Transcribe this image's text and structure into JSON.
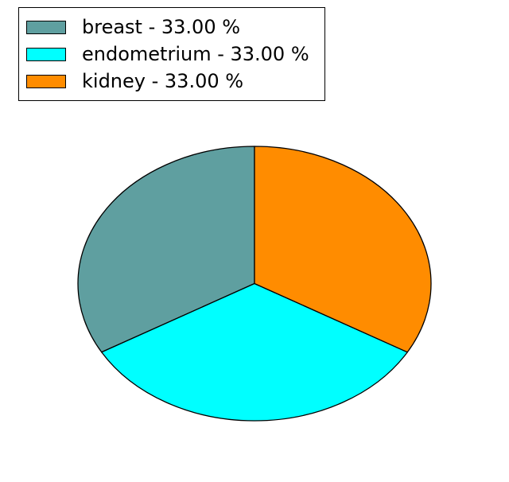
{
  "chart_data": {
    "type": "pie",
    "labels": [
      "breast",
      "endometrium",
      "kidney"
    ],
    "values": [
      33,
      33,
      33
    ],
    "percents_shown": [
      "33.00 %",
      "33.00 %",
      "33.00 %"
    ],
    "colors": [
      "#5f9fa0",
      "#00ffff",
      "#ff8c00"
    ],
    "startangle": 90,
    "counterclock": true,
    "edge_color": "#000000",
    "legend_position": "upper left",
    "title": ""
  },
  "legend": {
    "items": [
      {
        "label": "breast - 33.00 %",
        "color": "#5f9fa0"
      },
      {
        "label": "endometrium - 33.00 %",
        "color": "#00ffff"
      },
      {
        "label": "kidney - 33.00 %",
        "color": "#ff8c00"
      }
    ]
  },
  "colors": {
    "background": "#ffffff",
    "edge": "#000000"
  }
}
